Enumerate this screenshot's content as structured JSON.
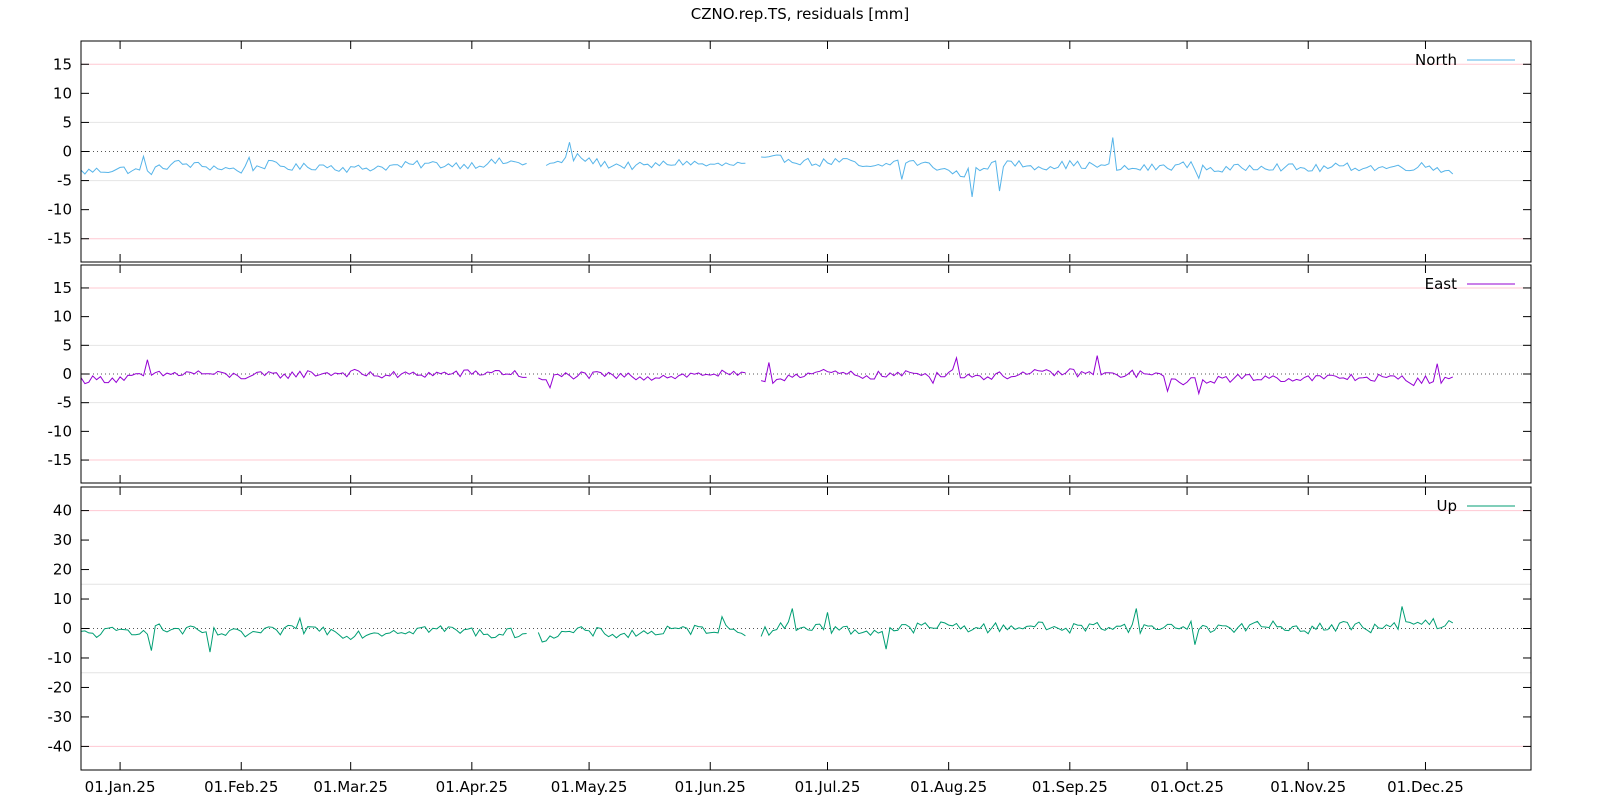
{
  "chart_data": [
    {
      "type": "line",
      "title": "CZNO.rep.TS, residuals [mm]",
      "legend_placement": "top-right",
      "x_range": [
        "2024-12-22",
        "2025-12-28"
      ],
      "x_tick_labels": [
        "01.Jan.25",
        "01.Feb.25",
        "01.Mar.25",
        "01.Apr.25",
        "01.May.25",
        "01.Jun.25",
        "01.Jul.25",
        "01.Aug.25",
        "01.Sep.25",
        "01.Oct.25",
        "01.Nov.25",
        "01.Dec.25"
      ],
      "x_tick_dates": [
        "2025-01-01",
        "2025-02-01",
        "2025-03-01",
        "2025-04-01",
        "2025-05-01",
        "2025-06-01",
        "2025-07-01",
        "2025-08-01",
        "2025-09-01",
        "2025-10-01",
        "2025-11-01",
        "2025-12-01"
      ],
      "panels": [
        {
          "name": "North",
          "color": "#56b4e9",
          "ylim": [
            -19,
            19
          ],
          "y_ticks": [
            15,
            10,
            5,
            0,
            -5,
            -10,
            -15
          ],
          "grid_lines": [
            15,
            5,
            -5,
            -15
          ],
          "gaps": [
            [
              "2025-04-15",
              "2025-04-20"
            ],
            [
              "2025-06-10",
              "2025-06-14"
            ]
          ],
          "points": [
            [
              "2024-12-22",
              -3.5
            ],
            [
              "2025-01-01",
              -3
            ],
            [
              "2025-01-08",
              -3.6
            ],
            [
              "2025-01-15",
              -2
            ],
            [
              "2025-01-22",
              -2.5
            ],
            [
              "2025-02-01",
              -3.2
            ],
            [
              "2025-02-08",
              -2.2
            ],
            [
              "2025-02-15",
              -2.8
            ],
            [
              "2025-02-22",
              -2.4
            ],
            [
              "2025-03-01",
              -3.0
            ],
            [
              "2025-03-10",
              -2.6
            ],
            [
              "2025-03-20",
              -2.2
            ],
            [
              "2025-04-01",
              -2.3
            ],
            [
              "2025-04-08",
              -1.8
            ],
            [
              "2025-04-15",
              -2.0
            ],
            [
              "2025-04-20",
              -2.5
            ],
            [
              "2025-04-28",
              -1.0
            ],
            [
              "2025-05-05",
              -2.2
            ],
            [
              "2025-05-15",
              -2.6
            ],
            [
              "2025-05-25",
              -1.8
            ],
            [
              "2025-06-01",
              -2.4
            ],
            [
              "2025-06-10",
              -2.2
            ],
            [
              "2025-06-14",
              -1.5
            ],
            [
              "2025-06-20",
              -1.2
            ],
            [
              "2025-06-28",
              -2.0
            ],
            [
              "2025-07-05",
              -1.6
            ],
            [
              "2025-07-12",
              -3.0
            ],
            [
              "2025-07-20",
              -1.5
            ],
            [
              "2025-07-28",
              -2.5
            ],
            [
              "2025-08-04",
              -4.0
            ],
            [
              "2025-08-10",
              -2.5
            ],
            [
              "2025-08-17",
              -2.0
            ],
            [
              "2025-08-25",
              -2.6
            ],
            [
              "2025-09-01",
              -2.2
            ],
            [
              "2025-09-08",
              -2.5
            ],
            [
              "2025-09-15",
              -3.0
            ],
            [
              "2025-09-22",
              -2.8
            ],
            [
              "2025-10-01",
              -2.3
            ],
            [
              "2025-10-10",
              -3.2
            ],
            [
              "2025-10-20",
              -2.4
            ],
            [
              "2025-11-01",
              -3.0
            ],
            [
              "2025-11-10",
              -2.6
            ],
            [
              "2025-11-20",
              -2.8
            ],
            [
              "2025-12-01",
              -2.5
            ],
            [
              "2025-12-08",
              -3.3
            ]
          ],
          "spikes": [
            [
              "2025-01-07",
              -0.8
            ],
            [
              "2025-02-03",
              -1.0
            ],
            [
              "2025-04-26",
              1.6
            ],
            [
              "2025-07-20",
              -4.8
            ],
            [
              "2025-08-07",
              -7.8
            ],
            [
              "2025-08-14",
              -6.8
            ],
            [
              "2025-09-12",
              2.4
            ],
            [
              "2025-10-04",
              -4.6
            ]
          ]
        },
        {
          "name": "East",
          "color": "#9400d3",
          "ylim": [
            -19,
            19
          ],
          "y_ticks": [
            15,
            10,
            5,
            0,
            -5,
            -10,
            -15
          ],
          "grid_lines": [
            15,
            5,
            -5,
            -15
          ],
          "gaps": [
            [
              "2025-04-15",
              "2025-04-18"
            ],
            [
              "2025-06-10",
              "2025-06-14"
            ]
          ],
          "points": [
            [
              "2024-12-22",
              -1.0
            ],
            [
              "2025-01-01",
              -0.8
            ],
            [
              "2025-01-10",
              -0.2
            ],
            [
              "2025-01-20",
              0.2
            ],
            [
              "2025-02-01",
              -0.4
            ],
            [
              "2025-02-10",
              -0.2
            ],
            [
              "2025-02-20",
              0.1
            ],
            [
              "2025-03-01",
              0.2
            ],
            [
              "2025-03-10",
              -0.3
            ],
            [
              "2025-03-20",
              0.0
            ],
            [
              "2025-04-01",
              0.1
            ],
            [
              "2025-04-08",
              0.4
            ],
            [
              "2025-04-15",
              -0.3
            ],
            [
              "2025-04-18",
              -1.2
            ],
            [
              "2025-04-25",
              -0.2
            ],
            [
              "2025-05-05",
              -0.3
            ],
            [
              "2025-05-15",
              -0.5
            ],
            [
              "2025-05-25",
              -0.3
            ],
            [
              "2025-06-01",
              0.1
            ],
            [
              "2025-06-10",
              -0.3
            ],
            [
              "2025-06-14",
              -1.8
            ],
            [
              "2025-06-22",
              -0.1
            ],
            [
              "2025-07-01",
              0.2
            ],
            [
              "2025-07-10",
              -0.3
            ],
            [
              "2025-07-20",
              -0.1
            ],
            [
              "2025-08-01",
              0.2
            ],
            [
              "2025-08-10",
              -0.5
            ],
            [
              "2025-08-20",
              0.0
            ],
            [
              "2025-09-01",
              0.3
            ],
            [
              "2025-09-10",
              -0.2
            ],
            [
              "2025-09-20",
              0.1
            ],
            [
              "2025-10-01",
              -1.4
            ],
            [
              "2025-10-10",
              -0.8
            ],
            [
              "2025-10-20",
              -0.6
            ],
            [
              "2025-11-01",
              -0.8
            ],
            [
              "2025-11-10",
              -0.6
            ],
            [
              "2025-11-20",
              -0.7
            ],
            [
              "2025-12-01",
              -1.0
            ],
            [
              "2025-12-08",
              -1.1
            ]
          ],
          "spikes": [
            [
              "2025-01-08",
              2.5
            ],
            [
              "2025-04-21",
              -2.4
            ],
            [
              "2025-06-16",
              2.0
            ],
            [
              "2025-07-28",
              -1.6
            ],
            [
              "2025-08-03",
              2.8
            ],
            [
              "2025-09-08",
              3.2
            ],
            [
              "2025-09-26",
              -3.0
            ],
            [
              "2025-10-04",
              -3.4
            ],
            [
              "2025-11-28",
              -2.0
            ],
            [
              "2025-12-04",
              1.8
            ]
          ]
        },
        {
          "name": "Up",
          "color": "#009e73",
          "ylim": [
            -48,
            48
          ],
          "y_ticks": [
            40,
            30,
            20,
            10,
            0,
            -10,
            -20,
            -30,
            -40
          ],
          "grid_lines": [
            40,
            15,
            -15,
            -40
          ],
          "gaps": [
            [
              "2025-04-15",
              "2025-04-18"
            ],
            [
              "2025-06-10",
              "2025-06-14"
            ]
          ],
          "points": [
            [
              "2024-12-22",
              -2
            ],
            [
              "2025-01-01",
              -1
            ],
            [
              "2025-01-10",
              0
            ],
            [
              "2025-01-20",
              -1
            ],
            [
              "2025-02-01",
              -2
            ],
            [
              "2025-02-10",
              -1
            ],
            [
              "2025-02-20",
              0
            ],
            [
              "2025-03-01",
              -2
            ],
            [
              "2025-03-10",
              -1
            ],
            [
              "2025-03-20",
              0
            ],
            [
              "2025-04-01",
              -1
            ],
            [
              "2025-04-08",
              -2
            ],
            [
              "2025-04-15",
              -1
            ],
            [
              "2025-04-18",
              -3
            ],
            [
              "2025-04-28",
              -1
            ],
            [
              "2025-05-10",
              -2
            ],
            [
              "2025-05-20",
              -1
            ],
            [
              "2025-06-01",
              0
            ],
            [
              "2025-06-10",
              -1
            ],
            [
              "2025-06-14",
              -1
            ],
            [
              "2025-06-22",
              1
            ],
            [
              "2025-07-01",
              0
            ],
            [
              "2025-07-10",
              -1
            ],
            [
              "2025-07-20",
              0
            ],
            [
              "2025-08-01",
              1
            ],
            [
              "2025-08-10",
              0
            ],
            [
              "2025-08-20",
              1
            ],
            [
              "2025-09-01",
              0
            ],
            [
              "2025-09-10",
              1
            ],
            [
              "2025-09-20",
              0
            ],
            [
              "2025-10-01",
              1
            ],
            [
              "2025-10-10",
              0
            ],
            [
              "2025-10-20",
              1
            ],
            [
              "2025-11-01",
              0
            ],
            [
              "2025-11-10",
              1
            ],
            [
              "2025-11-20",
              0
            ],
            [
              "2025-12-01",
              2
            ],
            [
              "2025-12-08",
              1
            ]
          ],
          "spikes": [
            [
              "2025-01-09",
              -7.5
            ],
            [
              "2025-01-24",
              -8.0
            ],
            [
              "2025-02-16",
              3.5
            ],
            [
              "2025-06-04",
              4.0
            ],
            [
              "2025-06-22",
              6.8
            ],
            [
              "2025-07-01",
              5.5
            ],
            [
              "2025-07-16",
              -7.0
            ],
            [
              "2025-09-18",
              6.8
            ],
            [
              "2025-10-03",
              -5.5
            ],
            [
              "2025-11-25",
              7.5
            ]
          ]
        }
      ]
    }
  ]
}
